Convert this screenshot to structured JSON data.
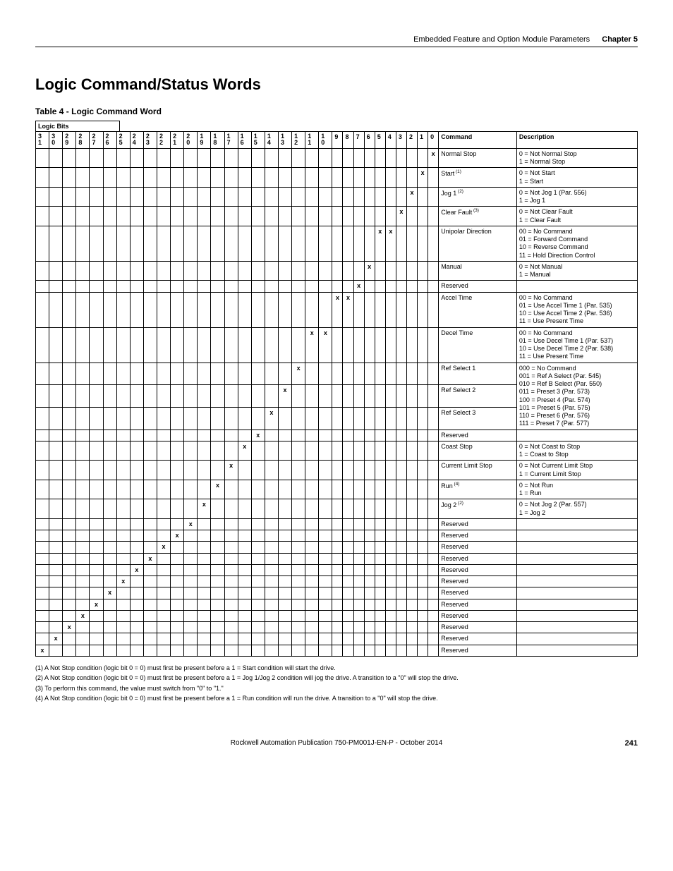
{
  "header": {
    "text": "Embedded Feature and Option Module Parameters",
    "chapter": "Chapter 5"
  },
  "title": "Logic Command/Status Words",
  "table_caption": "Table 4 - Logic Command Word",
  "logic_bits_label": "Logic Bits",
  "col_command": "Command",
  "col_description": "Description",
  "bit_headers": [
    "31",
    "30",
    "29",
    "28",
    "27",
    "26",
    "25",
    "24",
    "23",
    "22",
    "21",
    "20",
    "19",
    "18",
    "17",
    "16",
    "15",
    "14",
    "13",
    "12",
    "11",
    "10",
    "9",
    "8",
    "7",
    "6",
    "5",
    "4",
    "3",
    "2",
    "1",
    "0"
  ],
  "rows": [
    {
      "bits": {
        "0": "x"
      },
      "cmd": "Normal Stop",
      "desc": "0 = Not Normal Stop\n1 = Normal Stop"
    },
    {
      "bits": {
        "1": "x"
      },
      "cmd": "Start",
      "sup": "(1)",
      "desc": "0 = Not Start\n1 = Start"
    },
    {
      "bits": {
        "2": "x"
      },
      "cmd": "Jog 1",
      "sup": "(2)",
      "desc": "0 = Not Jog 1 (Par. 556)\n1 = Jog 1"
    },
    {
      "bits": {
        "3": "x"
      },
      "cmd": "Clear Fault",
      "sup": "(3)",
      "desc": "0 = Not Clear Fault\n1 = Clear Fault"
    },
    {
      "bits": {
        "4": "x",
        "5": "x"
      },
      "cmd": "Unipolar Direction",
      "desc": "00 = No Command\n01 = Forward Command\n10 = Reverse Command\n11 = Hold Direction Control"
    },
    {
      "bits": {
        "6": "x"
      },
      "cmd": "Manual",
      "desc": "0 = Not Manual\n1 = Manual"
    },
    {
      "bits": {
        "7": "x"
      },
      "cmd": "Reserved",
      "desc": ""
    },
    {
      "bits": {
        "8": "x",
        "9": "x"
      },
      "cmd": "Accel Time",
      "desc": "00 = No Command\n01 = Use Accel Time 1 (Par. 535)\n10 = Use Accel Time 2 (Par. 536)\n11 = Use Present Time"
    },
    {
      "bits": {
        "10": "x",
        "11": "x"
      },
      "cmd": "Decel Time",
      "desc": "00 = No Command\n01 = Use Decel Time 1 (Par. 537)\n10 = Use Decel Time 2 (Par. 538)\n11 = Use Present Time"
    },
    {
      "bits": {
        "12": "x"
      },
      "cmd": "Ref Select 1",
      "desc": "000 = No Command\n001 = Ref A Select (Par. 545)\n010 = Ref B Select (Par. 550)\n011 = Preset 3 (Par. 573)\n100 = Preset 4 (Par. 574)\n101 = Preset 5 (Par. 575)\n110 = Preset 6 (Par. 576)\n111 = Preset 7 (Par. 577)",
      "span_group": "ref",
      "span_start": true,
      "span_rows": 3
    },
    {
      "bits": {
        "13": "x"
      },
      "cmd": "Ref Select 2",
      "span_group": "ref"
    },
    {
      "bits": {
        "14": "x"
      },
      "cmd": "Ref Select 3",
      "span_group": "ref"
    },
    {
      "bits": {
        "15": "x"
      },
      "cmd": "Reserved",
      "desc": ""
    },
    {
      "bits": {
        "16": "x"
      },
      "cmd": "Coast Stop",
      "desc": "0 = Not Coast to Stop\n1 = Coast to Stop"
    },
    {
      "bits": {
        "17": "x"
      },
      "cmd": "Current Limit Stop",
      "desc": "0 = Not Current Limit Stop\n1 = Current Limit Stop"
    },
    {
      "bits": {
        "18": "x"
      },
      "cmd": "Run",
      "sup": "(4)",
      "desc": "0 = Not Run\n1 = Run"
    },
    {
      "bits": {
        "19": "x"
      },
      "cmd": "Jog 2",
      "sup": "(2)",
      "desc": "0 = Not Jog 2 (Par. 557)\n1 = Jog 2"
    },
    {
      "bits": {
        "20": "x"
      },
      "cmd": "Reserved",
      "desc": ""
    },
    {
      "bits": {
        "21": "x"
      },
      "cmd": "Reserved",
      "desc": ""
    },
    {
      "bits": {
        "22": "x"
      },
      "cmd": "Reserved",
      "desc": ""
    },
    {
      "bits": {
        "23": "x"
      },
      "cmd": "Reserved",
      "desc": ""
    },
    {
      "bits": {
        "24": "x"
      },
      "cmd": "Reserved",
      "desc": ""
    },
    {
      "bits": {
        "25": "x"
      },
      "cmd": "Reserved",
      "desc": ""
    },
    {
      "bits": {
        "26": "x"
      },
      "cmd": "Reserved",
      "desc": ""
    },
    {
      "bits": {
        "27": "x"
      },
      "cmd": "Reserved",
      "desc": ""
    },
    {
      "bits": {
        "28": "x"
      },
      "cmd": "Reserved",
      "desc": ""
    },
    {
      "bits": {
        "29": "x"
      },
      "cmd": "Reserved",
      "desc": ""
    },
    {
      "bits": {
        "30": "x"
      },
      "cmd": "Reserved",
      "desc": ""
    },
    {
      "bits": {
        "31": "x"
      },
      "cmd": "Reserved",
      "desc": ""
    }
  ],
  "footnotes": [
    "(1)   A Not Stop condition (logic bit 0 = 0) must first be present before a 1 = Start condition will start the drive.",
    "(2)   A Not Stop condition (logic bit 0 = 0) must first be present before a 1 = Jog 1/Jog 2 condition will jog the drive. A transition to a \"0\" will stop the drive.",
    "(3)   To perform this command, the value must switch from \"0\" to \"1.\"",
    "(4)   A Not Stop condition (logic bit 0 = 0) must first be present before a 1 = Run condition will run the drive. A transition to a \"0\" will stop the drive."
  ],
  "footer": {
    "pub": "Rockwell Automation Publication 750-PM001J-EN-P - October 2014",
    "page": "241"
  }
}
